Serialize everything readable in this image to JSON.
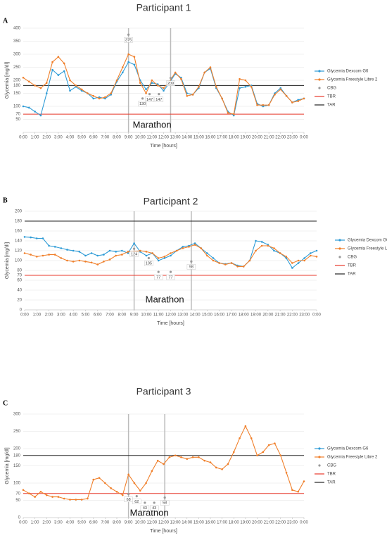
{
  "chart_data": [
    {
      "type": "line",
      "panel": "A",
      "title": "Participant 1",
      "xlabel": "Time [hours]",
      "ylabel": "Glycemia [mg/dl]",
      "annotation": "Marathon",
      "xlim": [
        0,
        24
      ],
      "ylim": [
        0,
        400
      ],
      "yticks": [
        50,
        70,
        100,
        150,
        180,
        200,
        250,
        300,
        350,
        400
      ],
      "grid": true,
      "xticks": [
        {
          "value": 0,
          "label": "0:00"
        },
        {
          "value": 1,
          "label": "1:00"
        },
        {
          "value": 2,
          "label": "2:00"
        },
        {
          "value": 3,
          "label": "3:00"
        },
        {
          "value": 4,
          "label": "4:00"
        },
        {
          "value": 5,
          "label": "5:00"
        },
        {
          "value": 6,
          "label": "6:00"
        },
        {
          "value": 7,
          "label": "7:00"
        },
        {
          "value": 8,
          "label": "8:00"
        },
        {
          "value": 9,
          "label": "9:00"
        },
        {
          "value": 10,
          "label": "10:00"
        },
        {
          "value": 11,
          "label": "11:00"
        },
        {
          "value": 12,
          "label": "12:00"
        },
        {
          "value": 13,
          "label": "13:00"
        },
        {
          "value": 14,
          "label": "14:00"
        },
        {
          "value": 15,
          "label": "15:00"
        },
        {
          "value": 16,
          "label": "16:00"
        },
        {
          "value": 17,
          "label": "17:00"
        },
        {
          "value": 18,
          "label": "18:00"
        },
        {
          "value": 19,
          "label": "19:00"
        },
        {
          "value": 20,
          "label": "20:00"
        },
        {
          "value": 21,
          "label": "21:00"
        },
        {
          "value": 22,
          "label": "22:00"
        },
        {
          "value": 23,
          "label": "23:00"
        },
        {
          "value": 24,
          "label": "0:00"
        }
      ],
      "x": [
        0,
        0.5,
        1,
        1.5,
        2,
        2.5,
        3,
        3.5,
        4,
        4.5,
        5,
        5.5,
        6,
        6.5,
        7,
        7.5,
        8,
        8.5,
        9,
        9.5,
        10,
        10.5,
        11,
        11.5,
        12,
        12.5,
        13,
        13.5,
        14,
        14.5,
        15,
        15.5,
        16,
        16.5,
        17,
        17.5,
        18,
        18.5,
        19,
        19.5,
        20,
        20.5,
        21,
        21.5,
        22,
        22.5,
        23,
        23.5,
        24
      ],
      "series": [
        {
          "name": "Glycemia Dexcom G6",
          "color": "#2e9bd6",
          "values": [
            100,
            95,
            80,
            65,
            150,
            240,
            220,
            235,
            160,
            175,
            160,
            150,
            130,
            135,
            130,
            145,
            195,
            230,
            270,
            260,
            200,
            165,
            190,
            185,
            160,
            190,
            225,
            210,
            150,
            145,
            170,
            230,
            245,
            170,
            130,
            80,
            65,
            170,
            175,
            180,
            110,
            100,
            105,
            150,
            170,
            140,
            115,
            125,
            130
          ]
        },
        {
          "name": "Glycemia Freestyle Libre 2",
          "color": "#f07f2a",
          "values": [
            210,
            195,
            180,
            170,
            190,
            270,
            290,
            265,
            200,
            180,
            165,
            150,
            140,
            130,
            135,
            150,
            200,
            250,
            300,
            290,
            190,
            150,
            200,
            180,
            170,
            195,
            230,
            205,
            140,
            145,
            175,
            230,
            250,
            175,
            130,
            75,
            70,
            205,
            200,
            175,
            105,
            105,
            105,
            145,
            165,
            140,
            115,
            120,
            130
          ]
        }
      ],
      "cbg": {
        "name": "CBG",
        "color": "#999999",
        "x": [
          9,
          10.2,
          10.8,
          11.6,
          12.6
        ],
        "values": [
          375,
          130,
          147,
          147,
          209
        ]
      },
      "event_lines": [
        9,
        12.6
      ],
      "reference_lines": [
        {
          "name": "TBR",
          "color": "#e8392b",
          "value": 70
        },
        {
          "name": "TAR",
          "color": "#222222",
          "value": 180
        }
      ]
    },
    {
      "type": "line",
      "panel": "B",
      "title": "Participant 2",
      "xlabel": "Time [hours]",
      "ylabel": "Glycemia [mg/dl]",
      "annotation": "Marathon",
      "xlim": [
        0,
        24
      ],
      "ylim": [
        0,
        200
      ],
      "yticks": [
        0,
        20,
        40,
        60,
        70,
        80,
        100,
        120,
        140,
        160,
        180,
        200
      ],
      "grid": true,
      "xticks": [
        {
          "value": 0,
          "label": "0:00"
        },
        {
          "value": 1,
          "label": "1:00"
        },
        {
          "value": 2,
          "label": "2:00"
        },
        {
          "value": 3,
          "label": "3:00"
        },
        {
          "value": 4,
          "label": "4:00"
        },
        {
          "value": 5,
          "label": "5:00"
        },
        {
          "value": 6,
          "label": "6:00"
        },
        {
          "value": 7,
          "label": "7:00"
        },
        {
          "value": 8,
          "label": "8:00"
        },
        {
          "value": 9,
          "label": "9:00"
        },
        {
          "value": 10,
          "label": "10:00"
        },
        {
          "value": 11,
          "label": "11:00"
        },
        {
          "value": 12,
          "label": "12:00"
        },
        {
          "value": 13,
          "label": "13:00"
        },
        {
          "value": 14,
          "label": "14:00"
        },
        {
          "value": 15,
          "label": "15:00"
        },
        {
          "value": 16,
          "label": "16:00"
        },
        {
          "value": 17,
          "label": "17:00"
        },
        {
          "value": 18,
          "label": "18:00"
        },
        {
          "value": 19,
          "label": "19:00"
        },
        {
          "value": 20,
          "label": "20:00"
        },
        {
          "value": 21,
          "label": "21:00"
        },
        {
          "value": 22,
          "label": "22:00"
        },
        {
          "value": 23,
          "label": "23:00"
        },
        {
          "value": 24,
          "label": "0:00"
        }
      ],
      "x": [
        0,
        0.5,
        1,
        1.5,
        2,
        2.5,
        3,
        3.5,
        4,
        4.5,
        5,
        5.5,
        6,
        6.5,
        7,
        7.5,
        8,
        8.5,
        9,
        9.5,
        10,
        10.5,
        11,
        11.5,
        12,
        12.5,
        13,
        13.5,
        14,
        14.5,
        15,
        15.5,
        16,
        16.5,
        17,
        17.5,
        18,
        18.5,
        19,
        19.5,
        20,
        20.5,
        21,
        21.5,
        22,
        22.5,
        23,
        23.5,
        24
      ],
      "series": [
        {
          "name": "Glycemia Dexcom G6",
          "color": "#2e9bd6",
          "values": [
            148,
            147,
            145,
            145,
            130,
            128,
            125,
            122,
            120,
            118,
            110,
            115,
            110,
            112,
            120,
            118,
            120,
            115,
            135,
            118,
            110,
            115,
            100,
            105,
            110,
            120,
            128,
            130,
            135,
            125,
            115,
            105,
            95,
            93,
            95,
            90,
            88,
            100,
            140,
            138,
            132,
            120,
            115,
            105,
            85,
            95,
            105,
            115,
            120
          ]
        },
        {
          "name": "Glycemia Freestyle Libre 2",
          "color": "#f07f2a",
          "values": [
            115,
            112,
            108,
            110,
            112,
            112,
            105,
            100,
            98,
            100,
            98,
            96,
            92,
            98,
            102,
            110,
            112,
            118,
            118,
            120,
            118,
            115,
            105,
            108,
            115,
            120,
            125,
            128,
            132,
            125,
            110,
            100,
            95,
            92,
            95,
            88,
            88,
            100,
            120,
            130,
            130,
            125,
            115,
            108,
            95,
            100,
            100,
            110,
            108
          ]
        }
      ],
      "cbg": {
        "name": "CBG",
        "color": "#999999",
        "x": [
          9,
          10.2,
          11,
          12,
          13.7
        ],
        "values": [
          124,
          105,
          77,
          77,
          98
        ]
      },
      "event_lines": [
        9,
        13.7
      ],
      "reference_lines": [
        {
          "name": "TBR",
          "color": "#e8392b",
          "value": 70
        },
        {
          "name": "TAR",
          "color": "#222222",
          "value": 180
        }
      ]
    },
    {
      "type": "line",
      "panel": "C",
      "title": "Participant 3",
      "xlabel": "Time [hours]",
      "ylabel": "Glycemia [mg/dl]",
      "annotation": "Marathon",
      "xlim": [
        0,
        24
      ],
      "ylim": [
        0,
        300
      ],
      "yticks": [
        0,
        50,
        70,
        100,
        150,
        180,
        200,
        250,
        300
      ],
      "grid": true,
      "xticks": [
        {
          "value": 0,
          "label": "0:00"
        },
        {
          "value": 1,
          "label": "1:00"
        },
        {
          "value": 2,
          "label": "2:00"
        },
        {
          "value": 3,
          "label": "3:00"
        },
        {
          "value": 4,
          "label": "4:00"
        },
        {
          "value": 5,
          "label": "5:00"
        },
        {
          "value": 6,
          "label": "6:00"
        },
        {
          "value": 7,
          "label": "7:00"
        },
        {
          "value": 8,
          "label": "8:00"
        },
        {
          "value": 9,
          "label": "9:00"
        },
        {
          "value": 10,
          "label": "10:00"
        },
        {
          "value": 11,
          "label": "11:00"
        },
        {
          "value": 12,
          "label": "12:00"
        },
        {
          "value": 13,
          "label": "13:00"
        },
        {
          "value": 14,
          "label": "14:00"
        },
        {
          "value": 15,
          "label": "15:00"
        },
        {
          "value": 16,
          "label": "16:00"
        },
        {
          "value": 17,
          "label": "17:00"
        },
        {
          "value": 18,
          "label": "18:00"
        },
        {
          "value": 19,
          "label": "19:00"
        },
        {
          "value": 20,
          "label": "20:00"
        },
        {
          "value": 21,
          "label": "21:00"
        },
        {
          "value": 22,
          "label": "22:00"
        },
        {
          "value": 23,
          "label": "23:00"
        },
        {
          "value": 24,
          "label": "0:00"
        }
      ],
      "x": [
        0,
        0.5,
        1,
        1.5,
        2,
        2.5,
        3,
        3.5,
        4,
        4.5,
        5,
        5.5,
        6,
        6.5,
        7,
        7.5,
        8,
        8.5,
        9,
        9.5,
        10,
        10.5,
        11,
        11.5,
        12,
        12.5,
        13,
        13.5,
        14,
        14.5,
        15,
        15.5,
        16,
        16.5,
        17,
        17.5,
        18,
        18.5,
        19,
        19.5,
        20,
        20.5,
        21,
        21.5,
        22,
        22.5,
        23,
        23.5,
        24
      ],
      "series": [
        {
          "name": "Glycemia Dexcom G6",
          "color": "#2e9bd6",
          "values": [
            null,
            null,
            null,
            null,
            null,
            null,
            null,
            null,
            null,
            null,
            null,
            null,
            null,
            null,
            null,
            null,
            null,
            null,
            null,
            null,
            null,
            null,
            null,
            null,
            null,
            null,
            null,
            null,
            null,
            null,
            null,
            null,
            null,
            null,
            null,
            null,
            null,
            null,
            null,
            null,
            null,
            null,
            null,
            null,
            null,
            null,
            null,
            null,
            null
          ]
        },
        {
          "name": "Glycemia Freestyle Libre 2",
          "color": "#f07f2a",
          "values": [
            80,
            70,
            60,
            75,
            65,
            60,
            60,
            55,
            52,
            52,
            52,
            55,
            110,
            115,
            100,
            85,
            75,
            65,
            125,
            100,
            78,
            100,
            135,
            165,
            155,
            175,
            180,
            175,
            170,
            175,
            175,
            165,
            160,
            145,
            140,
            155,
            190,
            230,
            265,
            230,
            180,
            190,
            210,
            215,
            180,
            130,
            80,
            75,
            105
          ]
        }
      ],
      "cbg": {
        "name": "CBG",
        "color": "#999999",
        "x": [
          9,
          9.7,
          10.4,
          11.2,
          12.1
        ],
        "values": [
          68,
          62,
          43,
          43,
          58
        ]
      },
      "event_lines": [
        9,
        12.1
      ],
      "reference_lines": [
        {
          "name": "TBR",
          "color": "#e8392b",
          "value": 70
        },
        {
          "name": "TAR",
          "color": "#222222",
          "value": 180
        }
      ]
    }
  ]
}
